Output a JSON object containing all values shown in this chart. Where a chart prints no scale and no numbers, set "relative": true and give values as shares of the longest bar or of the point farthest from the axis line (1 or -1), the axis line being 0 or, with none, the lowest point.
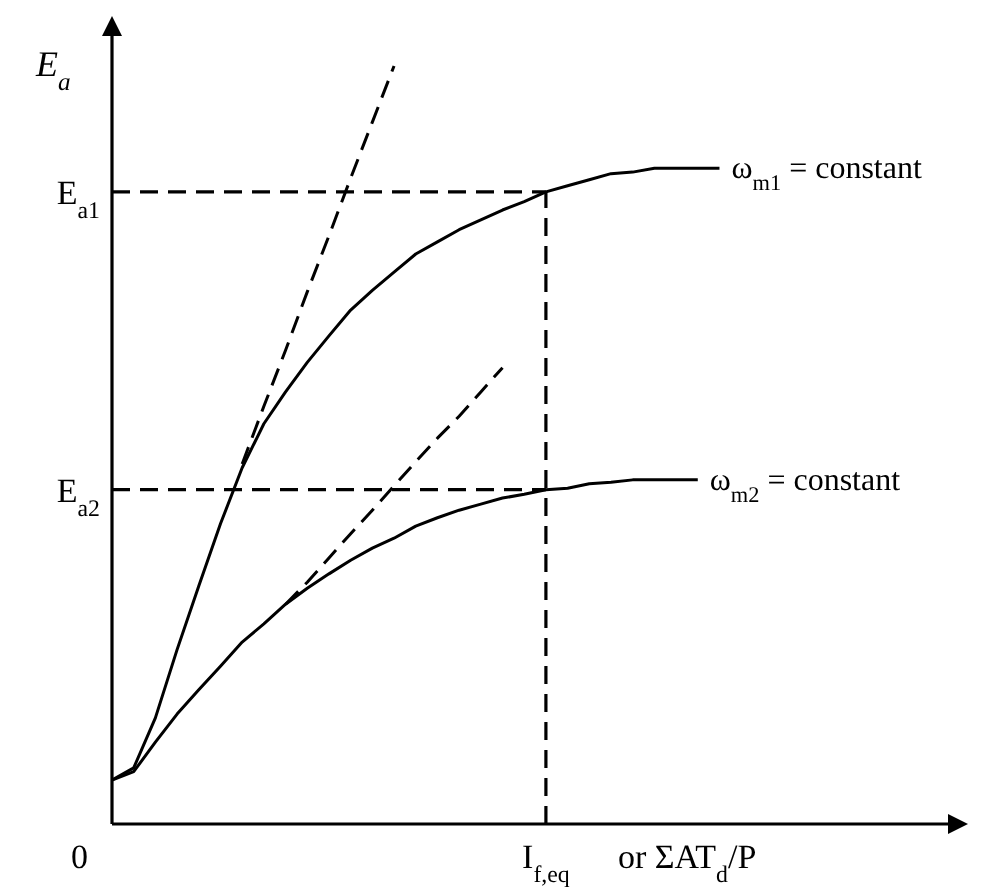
{
  "chart_data": {
    "type": "line",
    "relative": true,
    "xlabel": "or ΣAT$_{d}$/P",
    "ylabel": "E$_{a}$",
    "annotations": [
      "0",
      "I$_{f,eq}$"
    ],
    "categories": [
      null,
      null,
      null,
      null,
      null,
      null,
      null,
      null,
      null,
      null,
      null,
      null,
      null,
      null,
      null,
      null,
      null,
      null,
      null,
      null,
      null,
      null,
      null,
      null,
      null,
      null,
      null,
      null,
      null
    ],
    "series": [
      {
        "name": "ω$_{m1}$ = constant",
        "color": "#000000",
        "line_style": "solid",
        "values": [
          0.058,
          0.074,
          0.14,
          0.23,
          0.314,
          0.396,
          0.47,
          0.528,
          0.57,
          0.609,
          0.644,
          0.678,
          0.704,
          0.728,
          0.752,
          0.768,
          0.784,
          0.797,
          0.81,
          0.821,
          0.834,
          0.842,
          0.85,
          0.858,
          0.86,
          0.865,
          0.865,
          0.865,
          0.865
        ]
      },
      {
        "name": "ω$_{m2}$ = constant",
        "color": "#000000",
        "line_style": "solid",
        "values": [
          0.058,
          0.069,
          0.108,
          0.145,
          0.177,
          0.208,
          0.24,
          0.264,
          0.29,
          0.311,
          0.33,
          0.348,
          0.364,
          0.377,
          0.393,
          0.404,
          0.414,
          0.422,
          0.43,
          0.435,
          0.441,
          0.443,
          0.449,
          0.451,
          0.454,
          0.454,
          0.454,
          0.454,
          null
        ]
      },
      {
        "color": "#000000",
        "line_style": "dashed",
        "values": [
          null,
          null,
          null,
          null,
          null,
          null,
          0.475,
          0.551,
          0.625,
          0.702,
          0.776,
          0.852,
          0.926,
          1,
          null,
          null,
          null,
          null,
          null,
          null,
          null,
          null,
          null,
          null,
          null,
          null,
          null,
          null,
          null
        ]
      },
      {
        "color": "#000000",
        "line_style": "dashed",
        "values": [
          null,
          null,
          null,
          null,
          null,
          null,
          null,
          null,
          0.29,
          0.319,
          0.351,
          0.383,
          0.414,
          0.446,
          0.478,
          0.509,
          0.538,
          0.57,
          0.602,
          null,
          null,
          null,
          null,
          null,
          null,
          null,
          null,
          null,
          null
        ]
      }
    ],
    "ref_lines": [
      {
        "axis": "y",
        "value": 0.834,
        "label": "E$_{a1}$",
        "color": "#000000",
        "line_style": "dashed"
      },
      {
        "axis": "y",
        "value": 0.441,
        "label": "E$_{a2}$",
        "color": "#000000",
        "line_style": "dashed"
      }
    ]
  }
}
